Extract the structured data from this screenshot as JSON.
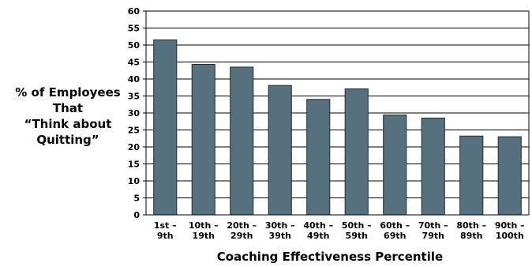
{
  "colors": {
    "bar_fill": "#56707f",
    "bar_stroke": "#1f2b33",
    "grid": "#000000"
  },
  "chart_data": {
    "type": "bar",
    "title": "",
    "xlabel": "Coaching Effectiveness Percentile",
    "ylabel_lines": [
      "% of Employees",
      "That",
      "“Think about",
      "Quitting”"
    ],
    "categories": [
      [
        "1st –",
        "9th"
      ],
      [
        "10th –",
        "19th"
      ],
      [
        "20th –",
        "29th"
      ],
      [
        "30th –",
        "39th"
      ],
      [
        "40th –",
        "49th"
      ],
      [
        "50th –",
        "59th"
      ],
      [
        "60th –",
        "69th"
      ],
      [
        "70th –",
        "79th"
      ],
      [
        "80th –",
        "89th"
      ],
      [
        "90th –",
        "100th"
      ]
    ],
    "values": [
      51.5,
      44.3,
      43.5,
      38.1,
      34.0,
      37.1,
      29.4,
      28.5,
      23.2,
      23.0
    ],
    "ylim": [
      0,
      60
    ],
    "yticks": [
      0,
      5,
      10,
      15,
      20,
      25,
      30,
      35,
      40,
      45,
      50,
      55,
      60
    ],
    "grid": true,
    "legend": "none"
  }
}
